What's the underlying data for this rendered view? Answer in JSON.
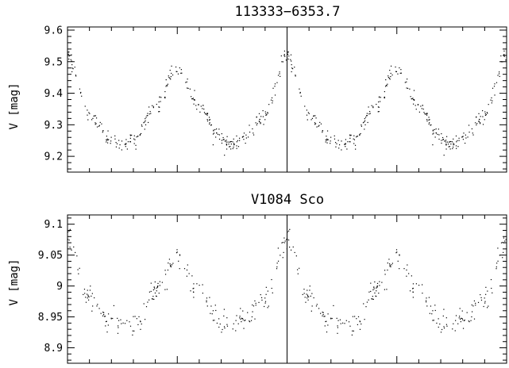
{
  "chart_data": [
    {
      "type": "scatter",
      "title": "113333−6353.7",
      "ylabel": "V [mag]",
      "ylim": [
        9.61,
        9.15
      ],
      "y_inverted": true,
      "xlim": [
        -1,
        1
      ],
      "x_tick_labels_shown": false,
      "divider_at_x": 0,
      "yticks": [
        9.2,
        9.3,
        9.4,
        9.5,
        9.6
      ],
      "ytick_labels": [
        "9.2",
        "9.3",
        "9.4",
        "9.5",
        "9.6"
      ],
      "marker_color": "#000000",
      "phase_curve": {
        "max_brightness": 9.237,
        "primary_minimum": 9.52,
        "secondary_minimum": 9.48,
        "scatter": 0.012
      },
      "series": [
        {
          "points_per_half": 300,
          "x": [
            -1.0,
            -0.9,
            -0.8,
            -0.75,
            -0.7,
            -0.6,
            -0.5,
            -0.4,
            -0.3,
            -0.25,
            -0.2,
            -0.1,
            0.0,
            0.1,
            0.2,
            0.25,
            0.3,
            0.4,
            0.5,
            0.6,
            0.7,
            0.75,
            0.8,
            0.9,
            1.0
          ],
          "y": [
            9.52,
            9.33,
            9.256,
            9.237,
            9.256,
            9.36,
            9.48,
            9.36,
            9.256,
            9.237,
            9.256,
            9.33,
            9.52,
            9.33,
            9.256,
            9.237,
            9.256,
            9.36,
            9.48,
            9.36,
            9.256,
            9.237,
            9.256,
            9.33,
            9.52
          ]
        }
      ]
    },
    {
      "type": "scatter",
      "title": "V1084 Sco",
      "ylabel": "V [mag]",
      "ylim": [
        9.115,
        8.875
      ],
      "y_inverted": true,
      "xlim": [
        -1,
        1
      ],
      "x_tick_labels_shown": false,
      "divider_at_x": 0,
      "yticks": [
        8.9,
        8.95,
        9.0,
        9.05,
        9.1
      ],
      "ytick_labels": [
        "8.9",
        "8.95",
        "9",
        "9.05",
        "9.1"
      ],
      "marker_color": "#000000",
      "phase_curve": {
        "max_brightness": 8.935,
        "primary_minimum": 9.075,
        "secondary_minimum": 9.045,
        "scatter": 0.009
      },
      "series": [
        {
          "points_per_half": 230,
          "x": [
            -1.0,
            -0.9,
            -0.8,
            -0.75,
            -0.7,
            -0.6,
            -0.5,
            -0.4,
            -0.3,
            -0.25,
            -0.2,
            -0.1,
            0.0,
            0.1,
            0.2,
            0.25,
            0.3,
            0.4,
            0.5,
            0.6,
            0.7,
            0.75,
            0.8,
            0.9,
            1.0
          ],
          "y": [
            9.075,
            8.98,
            8.942,
            8.935,
            8.942,
            8.99,
            9.045,
            8.99,
            8.942,
            8.935,
            8.942,
            8.98,
            9.075,
            8.98,
            8.942,
            8.935,
            8.942,
            8.99,
            9.045,
            8.99,
            8.942,
            8.935,
            8.942,
            8.98,
            9.075
          ]
        }
      ]
    }
  ]
}
